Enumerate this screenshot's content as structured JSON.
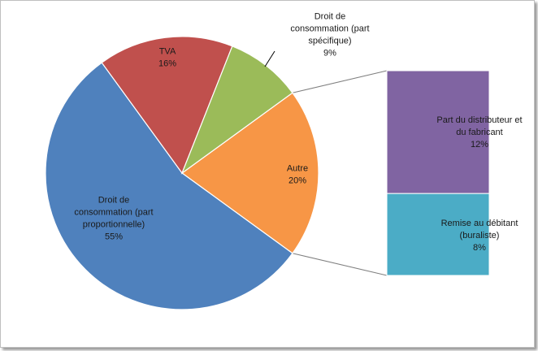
{
  "chart_data": {
    "type": "pie",
    "title": "",
    "slices": [
      {
        "label_lines": [
          "Autre",
          "20%"
        ],
        "value": 20,
        "color": "#f79646"
      },
      {
        "label_lines": [
          "Droit de",
          "consommation (part",
          "proportionnelle)",
          "55%"
        ],
        "value": 55,
        "color": "#4f81bd"
      },
      {
        "label_lines": [
          "TVA",
          "16%"
        ],
        "value": 16,
        "color": "#c0504d"
      },
      {
        "label_lines": [
          "Droit de",
          "consommation (part",
          "spécifique)",
          "9%"
        ],
        "value": 9,
        "color": "#9bbb59"
      }
    ],
    "breakdown": {
      "of_slice": "Autre",
      "segments": [
        {
          "label_lines": [
            "Part du distributeur et",
            "du fabricant",
            "12%"
          ],
          "value": 12,
          "color": "#8064a2"
        },
        {
          "label_lines": [
            "Remise au débitant",
            "(buraliste)",
            "8%"
          ],
          "value": 8,
          "color": "#4bacc6"
        }
      ]
    },
    "legend": "none",
    "grid": false
  }
}
